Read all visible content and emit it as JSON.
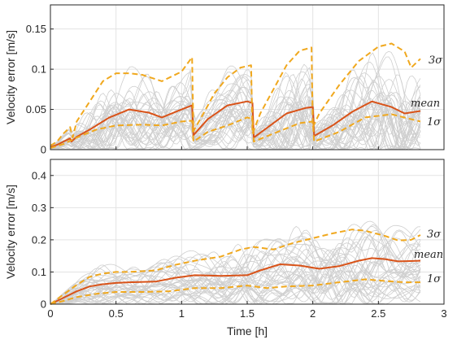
{
  "chart_data": [
    {
      "type": "line",
      "ylabel": "Velocity error [m/s]",
      "xlabel": "",
      "xlim": [
        0,
        3
      ],
      "ylim": [
        0,
        0.18
      ],
      "xticks": [
        0,
        0.5,
        1,
        1.5,
        2,
        2.5,
        3
      ],
      "xtick_labels_shown": false,
      "yticks": [
        0,
        0.05,
        0.1,
        0.15
      ],
      "ytick_labels": [
        "0",
        "0.05",
        "0.1",
        "0.15"
      ],
      "grid": true,
      "colors": {
        "mean": "#d95319",
        "sigma": "#f0a81e",
        "runs": "#cfcfcf"
      },
      "series": [
        {
          "name": "mean",
          "style": "solid",
          "x": [
            0,
            0.05,
            0.1,
            0.15,
            0.16,
            0.2,
            0.3,
            0.45,
            0.6,
            0.75,
            0.85,
            1.0,
            1.08,
            1.09,
            1.2,
            1.35,
            1.5,
            1.54,
            1.55,
            1.65,
            1.8,
            1.95,
            2.0,
            2.01,
            2.15,
            2.3,
            2.45,
            2.6,
            2.7,
            2.82
          ],
          "y": [
            0.003,
            0.006,
            0.01,
            0.014,
            0.01,
            0.016,
            0.025,
            0.04,
            0.05,
            0.046,
            0.04,
            0.05,
            0.055,
            0.018,
            0.038,
            0.055,
            0.06,
            0.058,
            0.015,
            0.027,
            0.045,
            0.052,
            0.053,
            0.017,
            0.03,
            0.047,
            0.06,
            0.053,
            0.045,
            0.048
          ]
        },
        {
          "name": "1σ",
          "style": "dashed",
          "x": [
            0,
            0.1,
            0.2,
            0.35,
            0.5,
            0.7,
            0.85,
            1.0,
            1.08,
            1.09,
            1.2,
            1.35,
            1.5,
            1.54,
            1.55,
            1.7,
            1.9,
            2.0,
            2.01,
            2.2,
            2.4,
            2.6,
            2.82
          ],
          "y": [
            0.002,
            0.007,
            0.015,
            0.025,
            0.03,
            0.031,
            0.03,
            0.035,
            0.036,
            0.01,
            0.022,
            0.03,
            0.04,
            0.038,
            0.01,
            0.02,
            0.033,
            0.035,
            0.01,
            0.022,
            0.04,
            0.044,
            0.035
          ]
        },
        {
          "name": "3σ",
          "style": "dashed",
          "x": [
            0,
            0.05,
            0.1,
            0.15,
            0.17,
            0.2,
            0.3,
            0.4,
            0.5,
            0.6,
            0.7,
            0.85,
            1.0,
            1.08,
            1.09,
            1.15,
            1.25,
            1.35,
            1.45,
            1.53,
            1.54,
            1.6,
            1.7,
            1.8,
            1.9,
            1.99,
            2.0,
            2.05,
            2.2,
            2.35,
            2.5,
            2.6,
            2.7,
            2.75,
            2.82
          ],
          "y": [
            0.005,
            0.01,
            0.02,
            0.028,
            0.015,
            0.035,
            0.06,
            0.085,
            0.095,
            0.095,
            0.093,
            0.085,
            0.097,
            0.115,
            0.023,
            0.04,
            0.07,
            0.09,
            0.102,
            0.105,
            0.02,
            0.045,
            0.075,
            0.105,
            0.123,
            0.127,
            0.028,
            0.045,
            0.08,
            0.11,
            0.128,
            0.132,
            0.122,
            0.102,
            0.113
          ]
        }
      ],
      "annotations": [
        "3σ",
        "mean",
        "1σ"
      ]
    },
    {
      "type": "line",
      "ylabel": "Velocity error [m/s]",
      "xlabel": "Time [h]",
      "xlim": [
        0,
        3
      ],
      "ylim": [
        0,
        0.45
      ],
      "xticks": [
        0,
        0.5,
        1,
        1.5,
        2,
        2.5,
        3
      ],
      "xtick_labels": [
        "0",
        "0.5",
        "1",
        "1.5",
        "2",
        "2.5",
        "3"
      ],
      "yticks": [
        0,
        0.1,
        0.2,
        0.3,
        0.4
      ],
      "ytick_labels": [
        "0",
        "0.1",
        "0.2",
        "0.3",
        "0.4"
      ],
      "grid": true,
      "colors": {
        "mean": "#d95319",
        "sigma": "#f0a81e",
        "runs": "#cfcfcf"
      },
      "series": [
        {
          "name": "mean",
          "style": "solid",
          "x": [
            0,
            0.1,
            0.2,
            0.3,
            0.4,
            0.5,
            0.6,
            0.8,
            0.95,
            1.1,
            1.3,
            1.5,
            1.6,
            1.75,
            1.9,
            2.05,
            2.2,
            2.35,
            2.45,
            2.55,
            2.65,
            2.82
          ],
          "y": [
            0,
            0.02,
            0.04,
            0.055,
            0.062,
            0.066,
            0.068,
            0.07,
            0.082,
            0.09,
            0.088,
            0.09,
            0.105,
            0.124,
            0.12,
            0.11,
            0.118,
            0.135,
            0.143,
            0.14,
            0.133,
            0.135
          ]
        },
        {
          "name": "1σ",
          "style": "dashed",
          "x": [
            0,
            0.1,
            0.2,
            0.35,
            0.5,
            0.7,
            0.9,
            1.1,
            1.3,
            1.5,
            1.65,
            1.8,
            2.0,
            2.2,
            2.4,
            2.55,
            2.7,
            2.82
          ],
          "y": [
            0,
            0.01,
            0.022,
            0.032,
            0.038,
            0.038,
            0.04,
            0.05,
            0.05,
            0.058,
            0.05,
            0.055,
            0.058,
            0.068,
            0.077,
            0.072,
            0.068,
            0.068
          ]
        },
        {
          "name": "3σ",
          "style": "dashed",
          "x": [
            0,
            0.1,
            0.2,
            0.3,
            0.4,
            0.5,
            0.6,
            0.8,
            0.95,
            1.1,
            1.3,
            1.45,
            1.55,
            1.7,
            1.85,
            2.0,
            2.15,
            2.3,
            2.4,
            2.55,
            2.65,
            2.75,
            2.82
          ],
          "y": [
            0,
            0.03,
            0.06,
            0.085,
            0.095,
            0.1,
            0.1,
            0.105,
            0.122,
            0.135,
            0.148,
            0.17,
            0.178,
            0.17,
            0.19,
            0.205,
            0.22,
            0.232,
            0.228,
            0.212,
            0.198,
            0.2,
            0.215
          ]
        }
      ],
      "annotations": [
        "3σ",
        "mean",
        "1σ"
      ]
    }
  ]
}
